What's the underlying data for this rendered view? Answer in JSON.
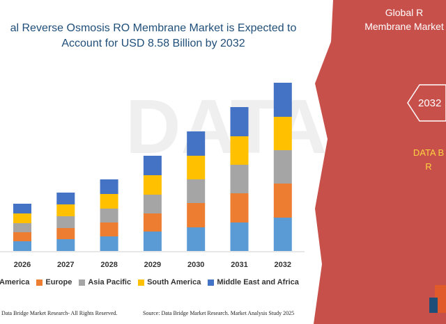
{
  "title_line1": "al Reverse Osmosis RO Membrane Market is Expected to",
  "title_line2": "Account for USD 8.58 Billion by 2032",
  "right_panel": {
    "title_line1": "Global R",
    "title_line2": "Membrane Market",
    "year": "2032",
    "brand_line1": "DATA B",
    "brand_line2": "R",
    "color": "#c8504b"
  },
  "footer_left": "Data Bridge Market Research-  All Rights Reserved.",
  "footer_right": "Source: Data Bridge Market Research. Market Analysis Study 2025",
  "chart_data": {
    "type": "bar",
    "stacked": true,
    "categories": [
      "2026",
      "2027",
      "2028",
      "2029",
      "2030",
      "2031",
      "2032"
    ],
    "series": [
      {
        "name": "America",
        "color": "#5b9bd5",
        "values": [
          14,
          17,
          21,
          28,
          34,
          41,
          48
        ]
      },
      {
        "name": "Europe",
        "color": "#ed7d31",
        "values": [
          13,
          16,
          20,
          26,
          35,
          42,
          49
        ]
      },
      {
        "name": "Asia Pacific",
        "color": "#a5a5a5",
        "values": [
          13,
          17,
          20,
          27,
          34,
          41,
          48
        ]
      },
      {
        "name": "South America",
        "color": "#ffc000",
        "values": [
          14,
          17,
          21,
          28,
          34,
          41,
          48
        ]
      },
      {
        "name": "Middle East and Africa",
        "color": "#4472c4",
        "values": [
          14,
          17,
          21,
          28,
          35,
          42,
          49
        ]
      }
    ],
    "legend_position": "bottom",
    "grid": false
  }
}
